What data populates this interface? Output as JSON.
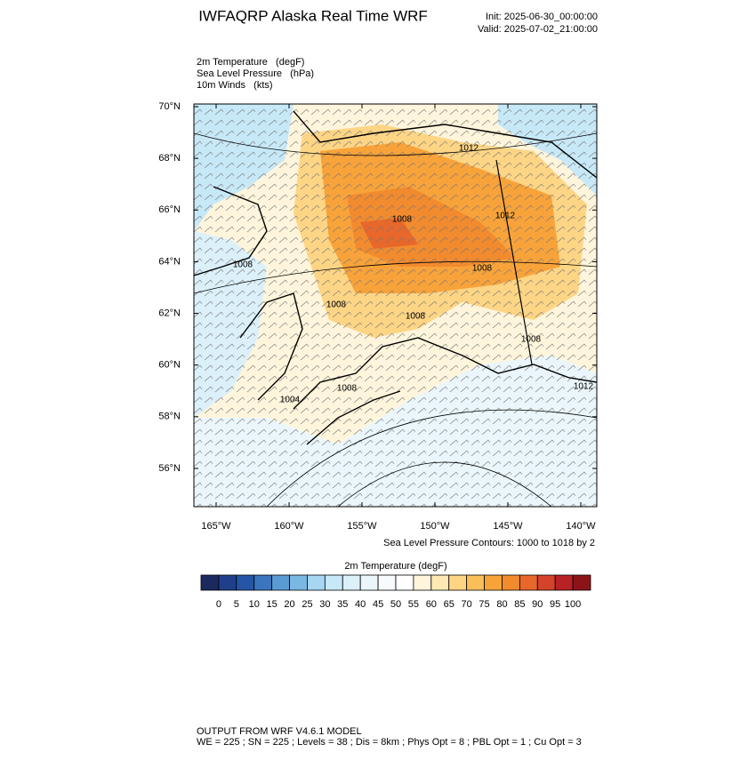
{
  "header": {
    "title": "IWFAQRP Alaska Real Time WRF",
    "init": "Init: 2025-06-30_00:00:00",
    "valid": "Valid: 2025-07-02_21:00:00"
  },
  "fields": [
    "2m Temperature   (degF)",
    "Sea Level Pressure   (hPa)",
    "10m Winds   (kts)"
  ],
  "map": {
    "lat_ticks": [
      {
        "value": 56,
        "label": "56°N"
      },
      {
        "value": 58,
        "label": "58°N"
      },
      {
        "value": 60,
        "label": "60°N"
      },
      {
        "value": 62,
        "label": "62°N"
      },
      {
        "value": 64,
        "label": "64°N"
      },
      {
        "value": 66,
        "label": "66°N"
      },
      {
        "value": 68,
        "label": "68°N"
      },
      {
        "value": 70,
        "label": "70°N"
      }
    ],
    "lon_ticks": [
      {
        "value": -165,
        "label": "165°W"
      },
      {
        "value": -160,
        "label": "160°W"
      },
      {
        "value": -155,
        "label": "155°W"
      },
      {
        "value": -150,
        "label": "150°W"
      },
      {
        "value": -145,
        "label": "145°W"
      },
      {
        "value": -140,
        "label": "140°W"
      }
    ],
    "contour_labels": [
      "1012",
      "1012",
      "1008",
      "1008",
      "1008",
      "1008",
      "1008",
      "1008",
      "1008",
      "1004",
      "1012"
    ],
    "contour_note": "Sea Level Pressure Contours: 1000 to 1018 by 2"
  },
  "colorbar": {
    "title": "2m Temperature  (degF)",
    "colors": [
      "#1a2a5e",
      "#1f3f8a",
      "#2456a5",
      "#3a75be",
      "#5a9bd4",
      "#7ab7e3",
      "#a6d6f2",
      "#c7e8f7",
      "#dbf0f9",
      "#eaf6fb",
      "#f7fbfd",
      "#ffffff",
      "#fff5dc",
      "#fee9b3",
      "#fdd585",
      "#fbbf5a",
      "#f8a33a",
      "#f28a2e",
      "#e8672a",
      "#d5432a",
      "#b82126",
      "#8c1418"
    ],
    "ticks": [
      0,
      5,
      10,
      15,
      20,
      25,
      30,
      35,
      40,
      45,
      50,
      55,
      60,
      65,
      70,
      75,
      80,
      85,
      90,
      95,
      100
    ]
  },
  "footer": {
    "line1": "OUTPUT FROM WRF V4.6.1 MODEL",
    "line2": "WE = 225 ; SN = 225 ; Levels = 38 ; Dis = 8km ; Phys Opt = 8 ; PBL Opt = 1 ; Cu Opt = 3"
  }
}
